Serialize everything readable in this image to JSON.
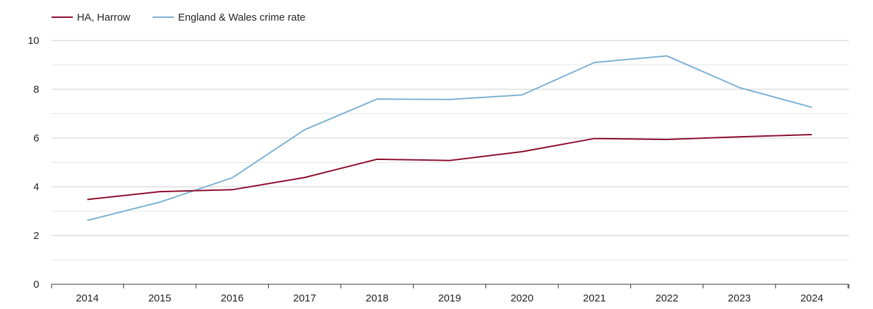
{
  "chart_data": {
    "type": "line",
    "title": "",
    "xlabel": "",
    "ylabel": "",
    "categories": [
      "2014",
      "2015",
      "2016",
      "2017",
      "2018",
      "2019",
      "2020",
      "2021",
      "2022",
      "2023",
      "2024"
    ],
    "ylim": [
      0,
      10
    ],
    "yticks": [
      "0",
      "2",
      "4",
      "6",
      "8",
      "10"
    ],
    "grid": true,
    "legend_position": "top-left",
    "series": [
      {
        "name": "HA, Harrow",
        "color": "#8b0a2a",
        "values": [
          3.48,
          3.8,
          3.88,
          4.38,
          5.13,
          5.08,
          5.44,
          5.98,
          5.94,
          6.05,
          6.14
        ]
      },
      {
        "name": "England & Wales crime rate",
        "color": "#7ab0d4",
        "values": [
          2.62,
          3.37,
          4.37,
          6.34,
          7.6,
          7.58,
          7.77,
          9.1,
          9.37,
          8.07,
          7.26
        ]
      }
    ]
  }
}
